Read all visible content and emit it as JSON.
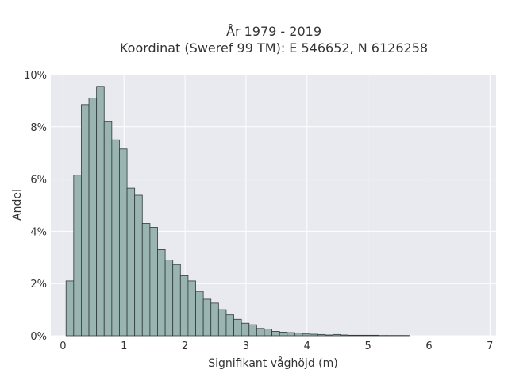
{
  "chart_data": {
    "type": "bar",
    "title_line1": "År 1979 - 2019",
    "title_line2": "Koordinat (Sweref 99 TM): E 546652, N 6126258",
    "xlabel": "Signifikant våghöjd (m)",
    "ylabel": "Andel",
    "xlim": [
      -0.2,
      7.1
    ],
    "ylim": [
      0,
      10
    ],
    "x_ticks": [
      0,
      1,
      2,
      3,
      4,
      5,
      6,
      7
    ],
    "x_tick_labels": [
      "0",
      "1",
      "2",
      "3",
      "4",
      "5",
      "6",
      "7"
    ],
    "y_ticks": [
      0,
      2,
      4,
      6,
      8,
      10
    ],
    "y_tick_labels": [
      "0%",
      "2%",
      "4%",
      "6%",
      "8%",
      "10%"
    ],
    "grid": true,
    "background_color": "#e9e9f0",
    "bar_fill": "#99b4b1",
    "bar_edge": "#2e3a38",
    "bin_width": 0.125,
    "bin_starts": [
      0.05,
      0.175,
      0.3,
      0.425,
      0.55,
      0.675,
      0.8,
      0.925,
      1.05,
      1.175,
      1.3,
      1.425,
      1.55,
      1.675,
      1.8,
      1.925,
      2.05,
      2.175,
      2.3,
      2.425,
      2.55,
      2.675,
      2.8,
      2.925,
      3.05,
      3.175,
      3.3,
      3.425,
      3.55,
      3.675,
      3.8,
      3.925,
      4.05,
      4.175,
      4.3,
      4.425,
      4.55,
      4.675,
      4.8,
      4.925,
      5.05,
      5.175,
      5.3,
      5.425,
      5.55
    ],
    "values": [
      2.1,
      6.15,
      8.85,
      9.1,
      9.55,
      8.2,
      7.5,
      7.15,
      5.65,
      5.38,
      4.3,
      4.15,
      3.3,
      2.9,
      2.73,
      2.3,
      2.1,
      1.7,
      1.4,
      1.25,
      1.0,
      0.8,
      0.63,
      0.48,
      0.42,
      0.28,
      0.26,
      0.17,
      0.14,
      0.12,
      0.1,
      0.07,
      0.06,
      0.05,
      0.03,
      0.05,
      0.03,
      0.02,
      0.02,
      0.02,
      0.02,
      0.01,
      0.01,
      0.01,
      0.01
    ]
  }
}
